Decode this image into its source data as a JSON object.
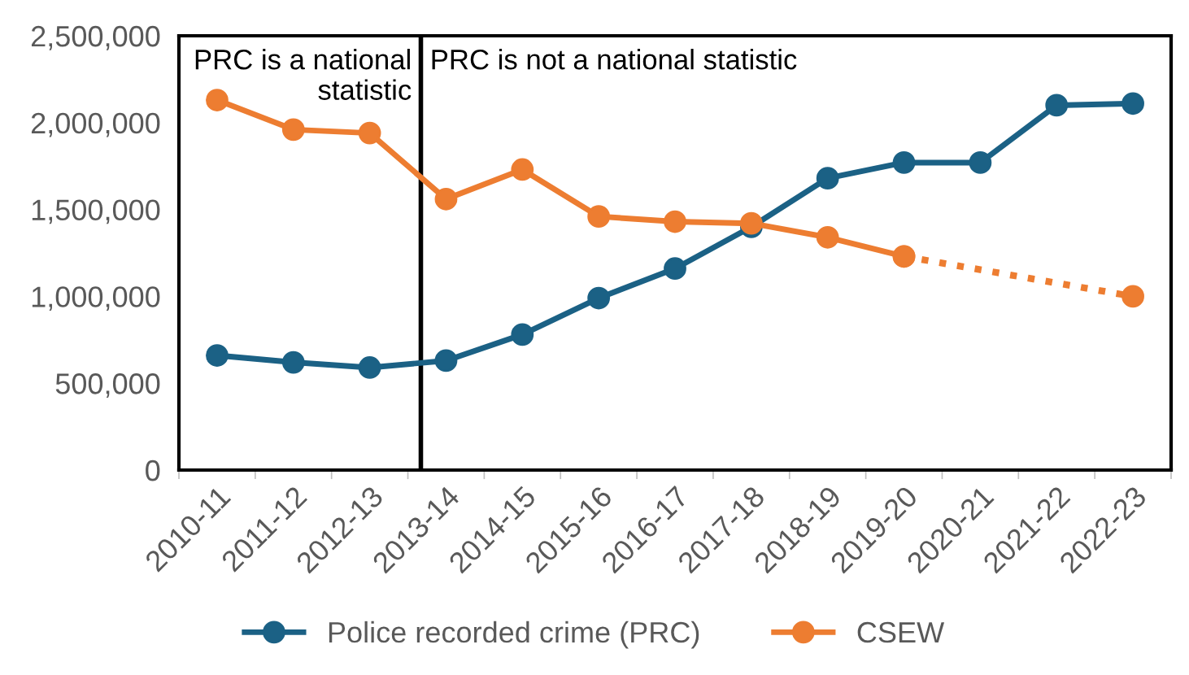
{
  "chart_data": {
    "type": "line",
    "categories": [
      "2010-11",
      "2011-12",
      "2012-13",
      "2013-14",
      "2014-15",
      "2015-16",
      "2016-17",
      "2017-18",
      "2018-19",
      "2019-20",
      "2020-21",
      "2021-22",
      "2022-23"
    ],
    "series": [
      {
        "name": "Police recorded crime (PRC)",
        "color": "#1b6185",
        "values": [
          660000,
          620000,
          590000,
          630000,
          780000,
          990000,
          1160000,
          1400000,
          1680000,
          1770000,
          1770000,
          2100000,
          2110000
        ]
      },
      {
        "name": "CSEW",
        "color": "#ed7d31",
        "values": [
          2130000,
          1960000,
          1940000,
          1560000,
          1730000,
          1460000,
          1430000,
          1420000,
          1340000,
          1230000,
          null,
          null,
          null
        ]
      },
      {
        "color": "#ed7d31",
        "line_style": "dotted",
        "values": [
          null,
          null,
          null,
          null,
          null,
          null,
          null,
          null,
          null,
          1230000,
          null,
          null,
          1000000
        ]
      }
    ],
    "ylim": [
      0,
      2500000
    ],
    "yticks": [
      {
        "value": 0,
        "label": "0"
      },
      {
        "value": 500000,
        "label": "500,000"
      },
      {
        "value": 1000000,
        "label": "1,000,000"
      },
      {
        "value": 1500000,
        "label": "1,500,000"
      },
      {
        "value": 2000000,
        "label": "2,000,000"
      },
      {
        "value": 2500000,
        "label": "2,500,000"
      }
    ],
    "annotations": [
      "PRC is a national\nstatistic",
      "PRC is not a national statistic"
    ],
    "marker": "circle",
    "line_style": "solid",
    "grid": false,
    "legend": "bottom"
  }
}
